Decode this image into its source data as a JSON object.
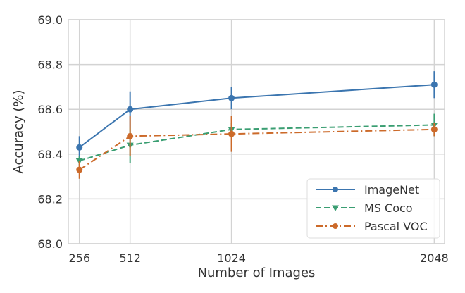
{
  "chart_data": {
    "type": "line",
    "title": "",
    "xlabel": "Number of Images",
    "ylabel": "Accuracy (%)",
    "x": [
      256,
      512,
      1024,
      2048
    ],
    "xlim": [
      200,
      2100
    ],
    "ylim": [
      68.0,
      69.0
    ],
    "yticks": [
      "68.0",
      "68.2",
      "68.4",
      "68.6",
      "68.8",
      "69.0"
    ],
    "xticks": [
      "256",
      "512",
      "1024",
      "2048"
    ],
    "grid": true,
    "legend_position": "lower-right",
    "series": [
      {
        "name": "ImageNet",
        "color": "#3b75af",
        "dash": "solid",
        "marker": "circle",
        "values": [
          68.43,
          68.6,
          68.65,
          68.71
        ],
        "errors": [
          0.05,
          0.08,
          0.05,
          0.06
        ]
      },
      {
        "name": "MS Coco",
        "color": "#3a9e72",
        "dash": "dashed",
        "marker": "triangle-down",
        "values": [
          68.37,
          68.44,
          68.51,
          68.53
        ],
        "errors": [
          0.02,
          0.08,
          0.03,
          0.05
        ]
      },
      {
        "name": "Pascal VOC",
        "color": "#cc6a2a",
        "dash": "dashdot",
        "marker": "circle",
        "values": [
          68.33,
          68.48,
          68.49,
          68.51
        ],
        "errors": [
          0.04,
          0.09,
          0.08,
          0.03
        ]
      }
    ]
  }
}
